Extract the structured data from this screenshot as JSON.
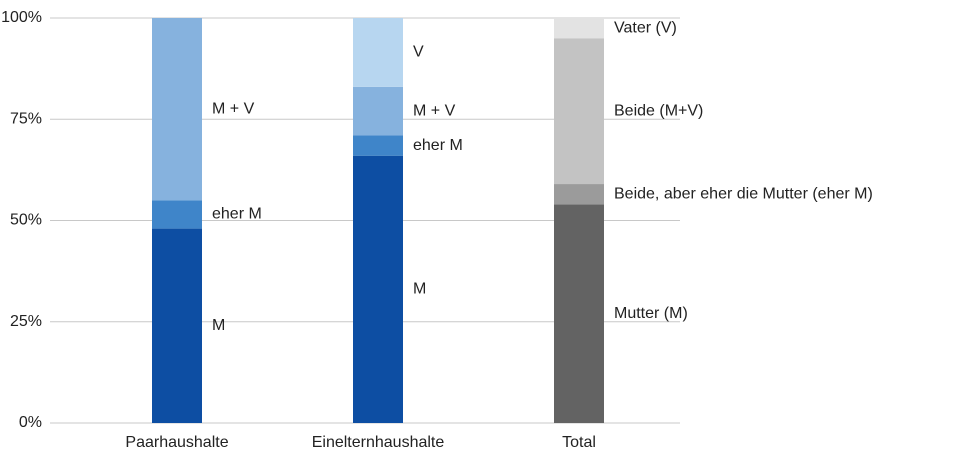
{
  "chart_data": {
    "type": "stacked-bar",
    "categories": [
      "Paarhaushalte",
      "Einelternhaushalte",
      "Total"
    ],
    "stacks": [
      [
        {
          "label": "M",
          "value": 48,
          "color": "#0d4ea3"
        },
        {
          "label": "eher M",
          "value": 7,
          "color": "#3f85c9"
        },
        {
          "label": "M + V",
          "value": 45,
          "color": "#86b2de"
        }
      ],
      [
        {
          "label": "M",
          "value": 66,
          "color": "#0d4ea3"
        },
        {
          "label": "eher M",
          "value": 5,
          "color": "#3f85c9"
        },
        {
          "label": "M + V",
          "value": 12,
          "color": "#86b2de"
        },
        {
          "label": "V",
          "value": 17,
          "color": "#b7d6f0"
        }
      ],
      [
        {
          "label": "Mutter (M)",
          "value": 54,
          "color": "#636363"
        },
        {
          "label": "Beide, aber eher die Mutter (eher M)",
          "value": 5,
          "color": "#9b9b9b"
        },
        {
          "label": "Beide (M+V)",
          "value": 36,
          "color": "#c3c3c3"
        },
        {
          "label": "Vater (V)",
          "value": 5,
          "color": "#e3e3e3"
        }
      ]
    ],
    "ylim": [
      0,
      100
    ],
    "yticks": [
      {
        "value": 0,
        "label": "0%"
      },
      {
        "value": 25,
        "label": "25%"
      },
      {
        "value": 50,
        "label": "50%"
      },
      {
        "value": 75,
        "label": "75%"
      },
      {
        "value": 100,
        "label": "100%"
      }
    ],
    "grid": true
  }
}
